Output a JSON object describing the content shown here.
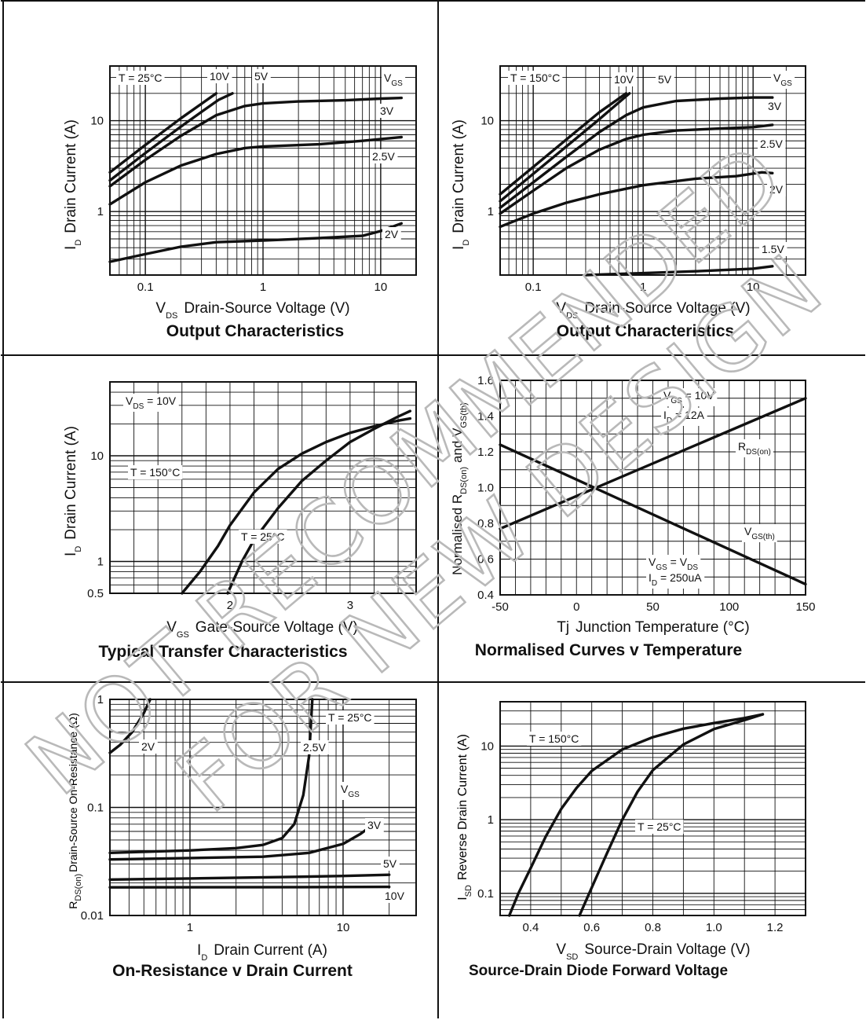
{
  "watermark": {
    "line1": "NOT RECOMMENDED",
    "line2": "FOR NEW DESIGN"
  },
  "chart_data": [
    {
      "id": "c1",
      "type": "line",
      "title": "Output Characteristics",
      "xlabel": {
        "main": "V",
        "sub": "DS",
        "text": "Drain-Source Voltage (V)"
      },
      "ylabel": {
        "main": "I",
        "sub": "D",
        "text": "Drain Current (A)"
      },
      "xscale": "log",
      "yscale": "log",
      "xlim": [
        0.05,
        20
      ],
      "ylim": [
        0.2,
        40
      ],
      "xticks": [
        {
          "v": 0.1,
          "t": "0.1"
        },
        {
          "v": 1,
          "t": "1"
        },
        {
          "v": 10,
          "t": "10"
        }
      ],
      "yticks": [
        {
          "v": 1,
          "t": "1"
        },
        {
          "v": 10,
          "t": "10"
        }
      ],
      "conditions": [
        "T = 25°C"
      ],
      "legend_title": "V_GS",
      "series": [
        {
          "name": "10V",
          "points": [
            [
              0.05,
              2.7
            ],
            [
              0.1,
              5.4
            ],
            [
              0.2,
              10.6
            ],
            [
              0.4,
              20
            ]
          ]
        },
        {
          "name": "5V",
          "points": [
            [
              0.05,
              2.2
            ],
            [
              0.1,
              4.4
            ],
            [
              0.2,
              8.6
            ],
            [
              0.3,
              12.5
            ],
            [
              0.42,
              17
            ],
            [
              0.55,
              20
            ]
          ]
        },
        {
          "name": "3V",
          "points": [
            [
              0.05,
              1.9
            ],
            [
              0.1,
              3.7
            ],
            [
              0.2,
              6.8
            ],
            [
              0.4,
              11.5
            ],
            [
              0.7,
              14.5
            ],
            [
              1,
              15.5
            ],
            [
              2,
              16.3
            ],
            [
              5,
              16.8
            ],
            [
              10,
              17.5
            ],
            [
              15,
              17.8
            ]
          ]
        },
        {
          "name": "2.5V",
          "points": [
            [
              0.05,
              1.2
            ],
            [
              0.1,
              2.1
            ],
            [
              0.2,
              3.2
            ],
            [
              0.4,
              4.3
            ],
            [
              0.7,
              5.0
            ],
            [
              1,
              5.2
            ],
            [
              3,
              5.5
            ],
            [
              7,
              6.0
            ],
            [
              15,
              6.6
            ]
          ]
        },
        {
          "name": "2V",
          "points": [
            [
              0.05,
              0.28
            ],
            [
              0.1,
              0.34
            ],
            [
              0.2,
              0.41
            ],
            [
              0.4,
              0.46
            ],
            [
              1,
              0.48
            ],
            [
              3,
              0.51
            ],
            [
              7,
              0.54
            ],
            [
              10,
              0.61
            ],
            [
              15,
              0.74
            ]
          ]
        }
      ]
    },
    {
      "id": "c2",
      "type": "line",
      "title": "Output Characteristics",
      "xlabel": {
        "main": "V",
        "sub": "DS",
        "text": "Drain-Source Voltage (V)"
      },
      "ylabel": {
        "main": "I",
        "sub": "D",
        "text": "Drain Current (A)"
      },
      "xscale": "log",
      "yscale": "log",
      "xlim": [
        0.05,
        30
      ],
      "ylim": [
        0.2,
        40
      ],
      "xticks": [
        {
          "v": 0.1,
          "t": "0.1"
        },
        {
          "v": 1,
          "t": "1"
        },
        {
          "v": 10,
          "t": "10"
        }
      ],
      "yticks": [
        {
          "v": 1,
          "t": "1"
        },
        {
          "v": 10,
          "t": "10"
        }
      ],
      "conditions": [
        "T = 150°C"
      ],
      "legend_title": "V_GS",
      "series": [
        {
          "name": "10V",
          "points": [
            [
              0.05,
              1.55
            ],
            [
              0.1,
              3.1
            ],
            [
              0.2,
              6.2
            ],
            [
              0.4,
              12.4
            ],
            [
              0.7,
              20
            ]
          ]
        },
        {
          "name": "5V",
          "points": [
            [
              0.05,
              1.3
            ],
            [
              0.1,
              2.6
            ],
            [
              0.2,
              5.2
            ],
            [
              0.4,
              10.4
            ],
            [
              0.75,
              20
            ]
          ]
        },
        {
          "name": "3V",
          "points": [
            [
              0.05,
              1.1
            ],
            [
              0.1,
              2.1
            ],
            [
              0.2,
              4.0
            ],
            [
              0.4,
              7.5
            ],
            [
              0.7,
              11.5
            ],
            [
              1,
              14
            ],
            [
              2,
              16.5
            ],
            [
              5,
              17.5
            ],
            [
              10,
              18
            ],
            [
              15,
              18
            ]
          ]
        },
        {
          "name": "2.5V",
          "points": [
            [
              0.05,
              0.95
            ],
            [
              0.1,
              1.7
            ],
            [
              0.2,
              3.0
            ],
            [
              0.4,
              4.8
            ],
            [
              0.7,
              6.3
            ],
            [
              1,
              7.0
            ],
            [
              2,
              7.8
            ],
            [
              5,
              8.2
            ],
            [
              10,
              8.5
            ],
            [
              15,
              9.0
            ]
          ]
        },
        {
          "name": "2V",
          "points": [
            [
              0.05,
              0.68
            ],
            [
              0.1,
              0.95
            ],
            [
              0.2,
              1.25
            ],
            [
              0.4,
              1.55
            ],
            [
              1,
              1.95
            ],
            [
              3,
              2.3
            ],
            [
              7,
              2.45
            ],
            [
              12,
              2.7
            ],
            [
              15,
              2.65
            ]
          ]
        },
        {
          "name": "1.5V",
          "points": [
            [
              0.3,
              0.2
            ],
            [
              1,
              0.21
            ],
            [
              3,
              0.22
            ],
            [
              10,
              0.235
            ],
            [
              15,
              0.25
            ]
          ]
        }
      ]
    },
    {
      "id": "c3",
      "type": "line",
      "title": "Typical Transfer Characteristics",
      "xlabel": {
        "main": "V",
        "sub": "GS",
        "text": "Gate-Source Voltage (V)"
      },
      "ylabel": {
        "main": "I",
        "sub": "D",
        "text": "Drain Current (A)"
      },
      "xscale": "linear",
      "yscale": "log",
      "xlim": [
        1.0,
        3.55
      ],
      "ylim": [
        0.5,
        50
      ],
      "xticks": [
        {
          "v": 2,
          "t": "2"
        },
        {
          "v": 3,
          "t": "3"
        }
      ],
      "yticks": [
        {
          "v": 0.5,
          "t": "0.5"
        },
        {
          "v": 1,
          "t": "1"
        },
        {
          "v": 10,
          "t": "10"
        }
      ],
      "conditions": [
        "V_DS = 10V"
      ],
      "series": [
        {
          "name": "T = 150°C",
          "points": [
            [
              1.6,
              0.5
            ],
            [
              1.75,
              0.8
            ],
            [
              1.9,
              1.4
            ],
            [
              2.0,
              2.2
            ],
            [
              2.2,
              4.5
            ],
            [
              2.4,
              7.5
            ],
            [
              2.6,
              10.5
            ],
            [
              2.8,
              13.5
            ],
            [
              3.0,
              16.5
            ],
            [
              3.2,
              19
            ],
            [
              3.4,
              21.5
            ],
            [
              3.5,
              22.5
            ]
          ]
        },
        {
          "name": "T = 25°C",
          "points": [
            [
              1.98,
              0.5
            ],
            [
              2.1,
              1.0
            ],
            [
              2.2,
              1.6
            ],
            [
              2.4,
              3.2
            ],
            [
              2.6,
              5.8
            ],
            [
              2.8,
              9.0
            ],
            [
              3.0,
              13.5
            ],
            [
              3.2,
              18
            ],
            [
              3.4,
              23.5
            ],
            [
              3.5,
              26.5
            ]
          ]
        }
      ]
    },
    {
      "id": "c4",
      "type": "line",
      "title": "Normalised Curves v Temperature",
      "xlabel": {
        "main": "Tj",
        "sub": "",
        "text": "Junction Temperature (°C)"
      },
      "ylabel": {
        "main": "Normalised R",
        "sub": "DS(on)",
        "mid": "and V",
        "sub2": "GS(th)"
      },
      "xscale": "linear",
      "yscale": "linear",
      "xlim": [
        -50,
        150
      ],
      "ylim": [
        0.4,
        1.6
      ],
      "xticks": [
        {
          "v": -50,
          "t": "-50"
        },
        {
          "v": 0,
          "t": "0"
        },
        {
          "v": 50,
          "t": "50"
        },
        {
          "v": 100,
          "t": "100"
        },
        {
          "v": 150,
          "t": "150"
        }
      ],
      "yticks": [
        {
          "v": 0.4,
          "t": "0.4"
        },
        {
          "v": 0.6,
          "t": "0.6"
        },
        {
          "v": 0.8,
          "t": "0.8"
        },
        {
          "v": 1.0,
          "t": "1.0"
        },
        {
          "v": 1.2,
          "t": "1.2"
        },
        {
          "v": 1.4,
          "t": "1.4"
        },
        {
          "v": 1.6,
          "t": "1.6"
        }
      ],
      "conditions": [
        "V_GS = 10V",
        "I_D = 12A",
        "V_GS = V_DS",
        "I_D = 250uA"
      ],
      "series": [
        {
          "name": "R_DS(on)",
          "points": [
            [
              -50,
              0.77
            ],
            [
              150,
              1.5
            ]
          ]
        },
        {
          "name": "V_GS(th)",
          "points": [
            [
              -50,
              1.24
            ],
            [
              150,
              0.46
            ]
          ]
        }
      ]
    },
    {
      "id": "c5",
      "type": "line",
      "title": "On-Resistance v Drain Current",
      "xlabel": {
        "main": "I",
        "sub": "D",
        "text": "Drain Current (A)"
      },
      "ylabel": {
        "main": "R",
        "sub": "DS(on)",
        "text": "Drain-Source On-Resistance (Ω)"
      },
      "xscale": "log",
      "yscale": "log",
      "xlim": [
        0.3,
        30
      ],
      "ylim": [
        0.01,
        1
      ],
      "xticks": [
        {
          "v": 1,
          "t": "1"
        },
        {
          "v": 10,
          "t": "10"
        }
      ],
      "yticks": [
        {
          "v": 0.01,
          "t": "0.01"
        },
        {
          "v": 0.1,
          "t": "0.1"
        },
        {
          "v": 1,
          "t": "1"
        }
      ],
      "conditions": [
        "T = 25°C"
      ],
      "legend_title": "V_GS",
      "series": [
        {
          "name": "2V",
          "points": [
            [
              0.3,
              0.32
            ],
            [
              0.35,
              0.38
            ],
            [
              0.42,
              0.5
            ],
            [
              0.5,
              0.75
            ],
            [
              0.55,
              1.0
            ]
          ]
        },
        {
          "name": "2.5V",
          "points": [
            [
              0.3,
              0.038
            ],
            [
              1,
              0.04
            ],
            [
              2,
              0.042
            ],
            [
              3,
              0.045
            ],
            [
              4,
              0.052
            ],
            [
              4.8,
              0.07
            ],
            [
              5.5,
              0.13
            ],
            [
              6,
              0.3
            ],
            [
              6.3,
              1.0
            ]
          ]
        },
        {
          "name": "3V",
          "points": [
            [
              0.3,
              0.033
            ],
            [
              1,
              0.034
            ],
            [
              3,
              0.035
            ],
            [
              6,
              0.038
            ],
            [
              10,
              0.046
            ],
            [
              13,
              0.057
            ],
            [
              15,
              0.066
            ]
          ]
        },
        {
          "name": "5V",
          "points": [
            [
              0.3,
              0.0215
            ],
            [
              1,
              0.022
            ],
            [
              5,
              0.0228
            ],
            [
              10,
              0.0232
            ],
            [
              20,
              0.0238
            ]
          ]
        },
        {
          "name": "10V",
          "points": [
            [
              0.3,
              0.0182
            ],
            [
              5,
              0.0183
            ],
            [
              20,
              0.0184
            ]
          ]
        }
      ]
    },
    {
      "id": "c6",
      "type": "line",
      "title": "Source-Drain Diode Forward Voltage",
      "xlabel": {
        "main": "V",
        "sub": "SD",
        "text": "Source-Drain Voltage (V)"
      },
      "ylabel": {
        "main": "I",
        "sub": "SD",
        "text": "Reverse Drain Current (A)"
      },
      "xscale": "linear",
      "yscale": "log",
      "xlim": [
        0.3,
        1.3
      ],
      "ylim": [
        0.05,
        40
      ],
      "xticks": [
        {
          "v": 0.4,
          "t": "0.4"
        },
        {
          "v": 0.6,
          "t": "0.6"
        },
        {
          "v": 0.8,
          "t": "0.8"
        },
        {
          "v": 1.0,
          "t": "1.0"
        },
        {
          "v": 1.2,
          "t": "1.2"
        }
      ],
      "yticks": [
        {
          "v": 0.1,
          "t": "0.1"
        },
        {
          "v": 1,
          "t": "1"
        },
        {
          "v": 10,
          "t": "10"
        }
      ],
      "series": [
        {
          "name": "T = 150°C",
          "points": [
            [
              0.33,
              0.05
            ],
            [
              0.36,
              0.1
            ],
            [
              0.4,
              0.22
            ],
            [
              0.45,
              0.6
            ],
            [
              0.5,
              1.4
            ],
            [
              0.55,
              2.7
            ],
            [
              0.6,
              4.6
            ],
            [
              0.7,
              9.0
            ],
            [
              0.8,
              13.2
            ],
            [
              0.9,
              17.2
            ],
            [
              1.0,
              20.5
            ],
            [
              1.1,
              24
            ],
            [
              1.16,
              27
            ]
          ]
        },
        {
          "name": "T = 25°C",
          "points": [
            [
              0.56,
              0.05
            ],
            [
              0.6,
              0.12
            ],
            [
              0.65,
              0.35
            ],
            [
              0.7,
              1.0
            ],
            [
              0.75,
              2.4
            ],
            [
              0.8,
              4.7
            ],
            [
              0.9,
              10.5
            ],
            [
              1.0,
              17
            ],
            [
              1.1,
              22.5
            ],
            [
              1.16,
              27
            ]
          ]
        }
      ]
    }
  ]
}
